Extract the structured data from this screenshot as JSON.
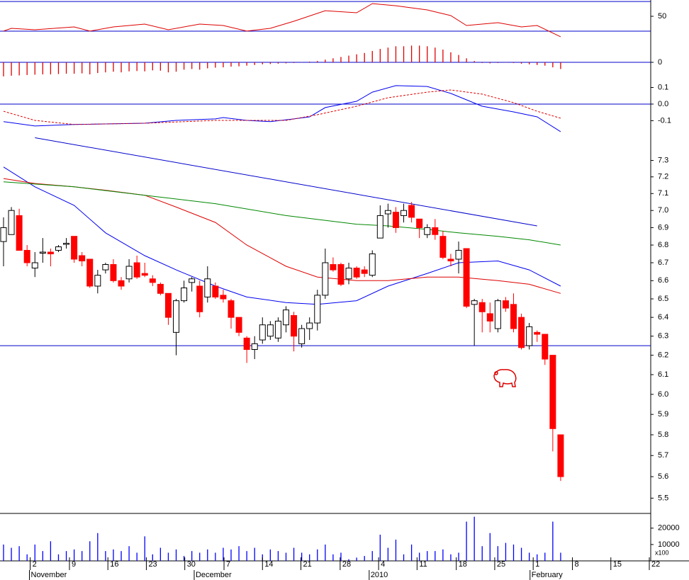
{
  "chart_data": [
    {
      "type": "line",
      "ylim": [
        7,
        72
      ],
      "yticks": [
        50
      ],
      "levels": [
        30,
        70
      ],
      "level_color": "#0000cc",
      "series": [
        {
          "color": "#dd0000",
          "x": [
            0,
            1,
            4,
            9,
            11,
            14,
            18,
            21,
            25,
            28,
            31,
            34,
            37,
            41,
            45,
            47,
            50,
            54,
            57,
            59,
            63,
            66,
            68,
            71
          ],
          "values": [
            30,
            33.8,
            31.9,
            35.7,
            30,
            35.7,
            39.5,
            31.9,
            39.5,
            37.6,
            30,
            33.8,
            43.3,
            57.6,
            54.8,
            67.1,
            64.3,
            58.6,
            51,
            37.6,
            41.4,
            35.7,
            37.6,
            22.4
          ]
        }
      ]
    },
    {
      "type": "bar",
      "ylim": [
        -0.055,
        0.055
      ],
      "yticks": [
        0
      ],
      "levels": [
        0
      ],
      "level_color": "#0000cc",
      "color": "#dd0000",
      "values": [
        -0.042,
        -0.04,
        -0.039,
        -0.038,
        -0.037,
        -0.036,
        -0.036,
        -0.035,
        -0.034,
        -0.034,
        -0.033,
        -0.036,
        -0.032,
        -0.03,
        -0.028,
        -0.03,
        -0.027,
        -0.026,
        -0.027,
        -0.024,
        -0.025,
        -0.03,
        -0.028,
        -0.022,
        -0.02,
        -0.022,
        -0.018,
        -0.016,
        -0.015,
        -0.013,
        -0.012,
        -0.01,
        -0.008,
        -0.006,
        -0.005,
        -0.004,
        -0.003,
        -0.002,
        0.001,
        0.002,
        0.004,
        0.008,
        0.012,
        0.016,
        0.02,
        0.024,
        0.028,
        0.034,
        0.04,
        0.044,
        0.048,
        0.048,
        0.05,
        0.05,
        0.048,
        0.044,
        0.038,
        0.03,
        0.022,
        0.012,
        0.004,
        -0.002,
        -0.003,
        -0.002,
        -0.001,
        -0.002,
        -0.004,
        -0.006,
        -0.008,
        -0.01,
        -0.015,
        -0.02
      ]
    },
    {
      "type": "line",
      "ylim": [
        -0.226,
        0.149
      ],
      "yticks": [
        0.1,
        {
          "value": 0,
          "label": "0.0"
        },
        -0.1
      ],
      "levels": [
        0
      ],
      "level_color": "#0000cc",
      "series": [
        {
          "color": "#0000ee",
          "dash": false,
          "x": [
            0,
            4,
            9,
            18,
            22,
            27,
            28,
            31,
            34,
            37,
            39,
            41,
            45,
            47,
            50,
            54,
            57,
            61,
            65,
            68,
            71
          ],
          "values": [
            -0.106,
            -0.132,
            -0.123,
            -0.115,
            -0.098,
            -0.089,
            -0.081,
            -0.098,
            -0.106,
            -0.089,
            -0.077,
            -0.021,
            0.017,
            0.072,
            0.111,
            0.106,
            0.064,
            -0.013,
            -0.047,
            -0.077,
            -0.166
          ]
        },
        {
          "color": "#dd0000",
          "dash": true,
          "x": [
            0,
            4,
            9,
            18,
            27,
            36,
            40,
            45,
            49,
            54,
            57,
            61,
            65,
            68,
            71
          ],
          "values": [
            -0.043,
            -0.098,
            -0.123,
            -0.115,
            -0.098,
            -0.098,
            -0.064,
            -0.013,
            0.038,
            0.072,
            0.085,
            0.06,
            0.009,
            -0.043,
            -0.085
          ]
        }
      ]
    },
    {
      "type": "candlestick",
      "log_scale": true,
      "ylim": [
        5.43,
        7.46
      ],
      "yticks": [
        7.3,
        7.2,
        7.1,
        {
          "value": 7,
          "label": "7.0"
        },
        6.9,
        6.8,
        6.7,
        6.6,
        6.5,
        6.4,
        6.3,
        6.2,
        6.1,
        {
          "value": 6,
          "label": "6.0"
        },
        5.9,
        5.8,
        5.7,
        5.6,
        5.5
      ],
      "levels": [
        6.25
      ],
      "level_color": "#0000cc",
      "up_color": "#ffffff",
      "down_color": "#ff0000",
      "open": [
        6.82,
        6.86,
        6.97,
        6.77,
        6.67,
        6.76,
        6.76,
        6.77,
        6.81,
        6.85,
        6.74,
        6.72,
        6.57,
        6.66,
        6.69,
        6.6,
        6.61,
        6.7,
        6.64,
        6.61,
        6.58,
        6.53,
        6.32,
        6.49,
        6.59,
        6.57,
        6.51,
        6.57,
        6.52,
        6.49,
        6.4,
        6.29,
        6.23,
        6.28,
        6.3,
        6.29,
        6.36,
        6.41,
        6.26,
        6.34,
        6.37,
        6.52,
        6.69,
        6.69,
        6.61,
        6.67,
        6.66,
        6.63,
        6.84,
        6.98,
        6.99,
        6.97,
        7.03,
        6.95,
        6.86,
        6.9,
        6.85,
        6.72,
        6.72,
        6.78,
        6.47,
        6.48,
        6.42,
        6.34,
        6.49,
        6.47,
        6.4,
        6.25,
        6.32,
        6.31,
        6.2,
        5.8
      ],
      "high": [
        6.96,
        7.02,
        7.01,
        6.8,
        6.76,
        6.84,
        6.78,
        6.8,
        6.84,
        6.85,
        6.76,
        6.72,
        6.66,
        6.7,
        6.72,
        6.62,
        6.72,
        6.74,
        6.7,
        6.63,
        6.59,
        6.53,
        6.5,
        6.6,
        6.62,
        6.6,
        6.68,
        6.59,
        6.55,
        6.5,
        6.4,
        6.3,
        6.3,
        6.4,
        6.38,
        6.4,
        6.46,
        6.43,
        6.36,
        6.4,
        6.55,
        6.78,
        6.73,
        6.7,
        6.7,
        6.68,
        6.68,
        6.77,
        7.03,
        7.04,
        7.02,
        7.04,
        7.05,
        6.95,
        6.92,
        6.95,
        6.88,
        6.75,
        6.82,
        6.78,
        6.5,
        6.5,
        6.48,
        6.5,
        6.51,
        6.53,
        6.42,
        6.37,
        6.33,
        6.31,
        6.2,
        5.8
      ],
      "low": [
        6.68,
        6.86,
        6.77,
        6.68,
        6.62,
        6.7,
        6.68,
        6.76,
        6.78,
        6.7,
        6.68,
        6.56,
        6.53,
        6.64,
        6.59,
        6.55,
        6.59,
        6.61,
        6.62,
        6.57,
        6.52,
        6.36,
        6.2,
        6.48,
        6.54,
        6.4,
        6.48,
        6.5,
        6.48,
        6.34,
        6.3,
        6.16,
        6.18,
        6.26,
        6.28,
        6.27,
        6.32,
        6.22,
        6.24,
        6.28,
        6.33,
        6.5,
        6.65,
        6.57,
        6.58,
        6.61,
        6.62,
        6.62,
        6.84,
        6.9,
        6.87,
        6.93,
        6.93,
        6.84,
        6.84,
        6.83,
        6.72,
        6.68,
        6.64,
        6.45,
        6.25,
        6.32,
        6.32,
        6.32,
        6.43,
        6.32,
        6.23,
        6.23,
        6.27,
        6.15,
        5.72,
        5.58
      ],
      "close": [
        6.9,
        7,
        6.77,
        6.7,
        6.7,
        6.76,
        6.75,
        6.79,
        6.81,
        6.72,
        6.71,
        6.57,
        6.63,
        6.69,
        6.6,
        6.57,
        6.68,
        6.62,
        6.63,
        6.59,
        6.53,
        6.4,
        6.49,
        6.56,
        6.61,
        6.43,
        6.61,
        6.51,
        6.5,
        6.4,
        6.32,
        6.23,
        6.26,
        6.36,
        6.36,
        6.38,
        6.44,
        6.3,
        6.34,
        6.37,
        6.52,
        6.7,
        6.66,
        6.58,
        6.67,
        6.62,
        6.64,
        6.75,
        6.97,
        7,
        6.9,
        7,
        6.96,
        6.9,
        6.9,
        6.86,
        6.73,
        6.71,
        6.77,
        6.46,
        6.49,
        6.43,
        6.38,
        6.49,
        6.45,
        6.34,
        6.24,
        6.35,
        6.31,
        6.18,
        5.83,
        5.6
      ],
      "series": [
        {
          "color": "#0000ee",
          "x": [
            0,
            4,
            9,
            13,
            18,
            22,
            27,
            31,
            36,
            40,
            45,
            49,
            54,
            58,
            63,
            67,
            71
          ],
          "values": [
            7.26,
            7.14,
            7.03,
            6.87,
            6.74,
            6.66,
            6.57,
            6.51,
            6.48,
            6.47,
            6.49,
            6.57,
            6.64,
            6.7,
            6.71,
            6.66,
            6.57
          ]
        },
        {
          "color": "#dd0000",
          "x": [
            0,
            4,
            9,
            13,
            18,
            22,
            27,
            31,
            36,
            40,
            45,
            49,
            54,
            58,
            63,
            67,
            71
          ],
          "values": [
            7.19,
            7.16,
            7.14,
            7.12,
            7.09,
            7.02,
            6.93,
            6.8,
            6.68,
            6.62,
            6.6,
            6.6,
            6.62,
            6.62,
            6.6,
            6.58,
            6.53
          ]
        },
        {
          "color": "#008800",
          "x": [
            0,
            9,
            18,
            27,
            36,
            45,
            49,
            54,
            58,
            63,
            67,
            71
          ],
          "values": [
            7.17,
            7.14,
            7.09,
            7.04,
            6.97,
            6.92,
            6.91,
            6.89,
            6.87,
            6.85,
            6.83,
            6.8
          ]
        },
        {
          "color": "#0000cc",
          "x": [
            4,
            68
          ],
          "values": [
            7.44,
            6.91
          ]
        }
      ]
    },
    {
      "type": "bar",
      "ylim": [
        0,
        29000
      ],
      "yticks": [
        20000,
        10000
      ],
      "unit_label": "x100",
      "color": "#0000ff",
      "values": [
        10000,
        8000,
        9000,
        4000,
        10000,
        6000,
        12000,
        4000,
        6000,
        7000,
        6000,
        12000,
        17000,
        6000,
        7000,
        6000,
        9000,
        5000,
        15000,
        4000,
        8000,
        5000,
        7000,
        3000,
        6000,
        5000,
        7000,
        5000,
        8000,
        7000,
        9000,
        6000,
        8000,
        4000,
        7000,
        6000,
        5000,
        8000,
        5000,
        4000,
        7000,
        10000,
        4000,
        5000,
        1000,
        2000,
        3000,
        6000,
        16000,
        8000,
        13000,
        4000,
        10000,
        5000,
        6000,
        6000,
        7000,
        4000,
        5000,
        24000,
        27000,
        9000,
        17000,
        9000,
        11000,
        10000,
        8000,
        5000,
        4000,
        5000,
        24000,
        5000
      ],
      "xlim": [
        -0.45,
        82.48
      ],
      "xticks": [
        {
          "value": 3.4,
          "label": "2"
        },
        {
          "value": 8.4,
          "label": "9"
        },
        {
          "value": 13.3,
          "label": "16"
        },
        {
          "value": 18.2,
          "label": "23"
        },
        {
          "value": 23.1,
          "label": "30"
        },
        {
          "value": 28.1,
          "label": "7"
        },
        {
          "value": 33,
          "label": "14"
        },
        {
          "value": 37.9,
          "label": "21"
        },
        {
          "value": 42.9,
          "label": "28"
        },
        {
          "value": 47.8,
          "label": "4"
        },
        {
          "value": 52.7,
          "label": "11"
        },
        {
          "value": 57.7,
          "label": "18"
        },
        {
          "value": 62.6,
          "label": "25"
        },
        {
          "value": 67.5,
          "label": "1"
        },
        {
          "value": 72.5,
          "label": "8"
        },
        {
          "value": 77.4,
          "label": "15"
        },
        {
          "value": 82.3,
          "label": "22"
        }
      ],
      "month_labels": [
        {
          "value": 3.3,
          "label": "November"
        },
        {
          "value": 24.3,
          "label": "December"
        },
        {
          "value": 46.6,
          "label": "2010"
        },
        {
          "value": 67.1,
          "label": "February"
        }
      ]
    }
  ]
}
